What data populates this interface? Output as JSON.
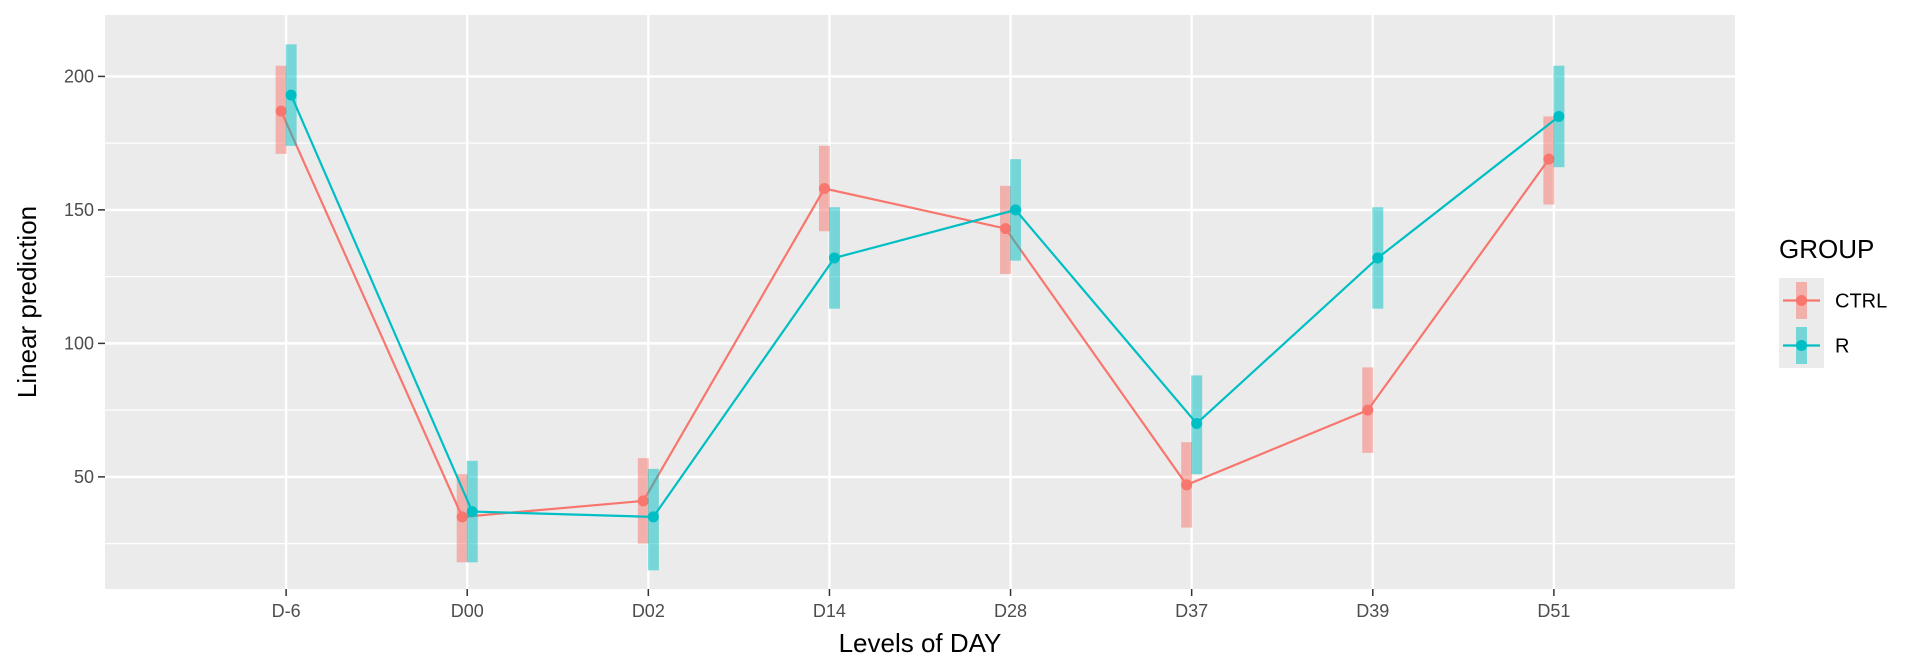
{
  "chart_data": {
    "type": "line",
    "title": "",
    "xlabel": "Levels of DAY",
    "ylabel": "Linear prediction",
    "categories": [
      "D-6",
      "D00",
      "D02",
      "D14",
      "D28",
      "D37",
      "D39",
      "D51"
    ],
    "ylim": [
      8,
      223
    ],
    "yticks": [
      50,
      100,
      150,
      200
    ],
    "grid": true,
    "legend_position": "right",
    "legend_title": "GROUP",
    "series": [
      {
        "name": "CTRL",
        "color": "#F8766D",
        "values": [
          187,
          35,
          41,
          158,
          143,
          47,
          75,
          169
        ],
        "ci_low": [
          171,
          18,
          25,
          142,
          126,
          31,
          59,
          152
        ],
        "ci_high": [
          204,
          51,
          57,
          174,
          159,
          63,
          91,
          185
        ]
      },
      {
        "name": "R",
        "color": "#00BFC4",
        "values": [
          193,
          37,
          35,
          132,
          150,
          70,
          132,
          185
        ],
        "ci_low": [
          174,
          18,
          15,
          113,
          131,
          51,
          113,
          166
        ],
        "ci_high": [
          212,
          56,
          53,
          151,
          169,
          88,
          151,
          204
        ]
      }
    ]
  }
}
